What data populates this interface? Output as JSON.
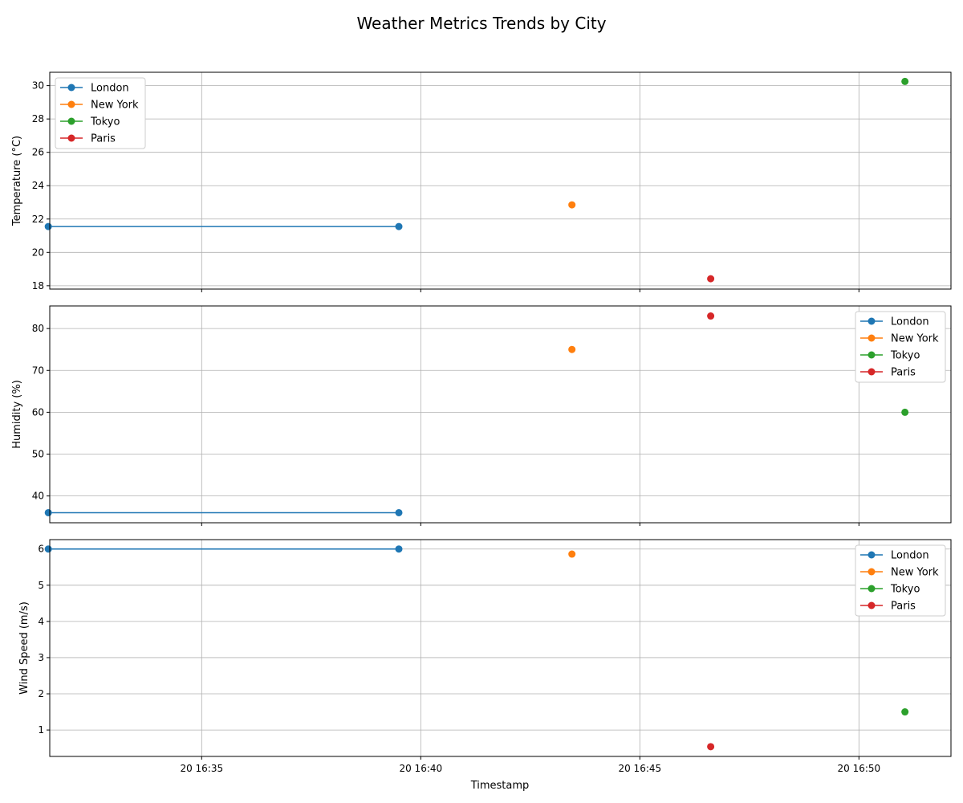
{
  "chart_data": {
    "type": "line",
    "title": "Weather Metrics Trends by City",
    "xlabel": "Timestamp",
    "x_axis_kind": "time",
    "x_ticks": [
      "20 16:35",
      "20 16:40",
      "20 16:45",
      "20 16:50"
    ],
    "x_tick_times": [
      "16:35",
      "16:40",
      "16:45",
      "16:50"
    ],
    "xlim": [
      "16:31:32",
      "16:52:06"
    ],
    "colors": {
      "London": "#1f77b4",
      "New York": "#ff7f0e",
      "Tokyo": "#2ca02c",
      "Paris": "#d62728"
    },
    "panels": [
      {
        "ylabel": "Temperature (°C)",
        "ylim": [
          17.8,
          30.8
        ],
        "yticks": [
          18,
          20,
          22,
          24,
          26,
          28,
          30
        ],
        "legend_position": "upper-left",
        "grid": true,
        "series": [
          {
            "name": "London",
            "points": [
              [
                "16:31:30",
                21.55
              ],
              [
                "16:39:30",
                21.55
              ]
            ]
          },
          {
            "name": "New York",
            "points": [
              [
                "16:43:27",
                22.85
              ]
            ]
          },
          {
            "name": "Tokyo",
            "points": [
              [
                "16:51:03",
                30.25
              ]
            ]
          },
          {
            "name": "Paris",
            "points": [
              [
                "16:46:37",
                18.42
              ]
            ]
          }
        ]
      },
      {
        "ylabel": "Humidity (%)",
        "ylim": [
          33.6,
          85.4
        ],
        "yticks": [
          40,
          50,
          60,
          70,
          80
        ],
        "legend_position": "upper-right",
        "grid": true,
        "series": [
          {
            "name": "London",
            "points": [
              [
                "16:31:30",
                36
              ],
              [
                "16:39:30",
                36
              ]
            ]
          },
          {
            "name": "New York",
            "points": [
              [
                "16:43:27",
                75
              ]
            ]
          },
          {
            "name": "Tokyo",
            "points": [
              [
                "16:51:03",
                60
              ]
            ]
          },
          {
            "name": "Paris",
            "points": [
              [
                "16:46:37",
                83
              ]
            ]
          }
        ]
      },
      {
        "ylabel": "Wind Speed (m/s)",
        "ylim": [
          0.27,
          6.26
        ],
        "yticks": [
          1,
          2,
          3,
          4,
          5,
          6
        ],
        "legend_position": "upper-right",
        "grid": true,
        "series": [
          {
            "name": "London",
            "points": [
              [
                "16:31:30",
                6.0
              ],
              [
                "16:39:30",
                6.0
              ]
            ]
          },
          {
            "name": "New York",
            "points": [
              [
                "16:43:27",
                5.86
              ]
            ]
          },
          {
            "name": "Tokyo",
            "points": [
              [
                "16:51:03",
                1.5
              ]
            ]
          },
          {
            "name": "Paris",
            "points": [
              [
                "16:46:37",
                0.54
              ]
            ]
          }
        ]
      }
    ]
  }
}
